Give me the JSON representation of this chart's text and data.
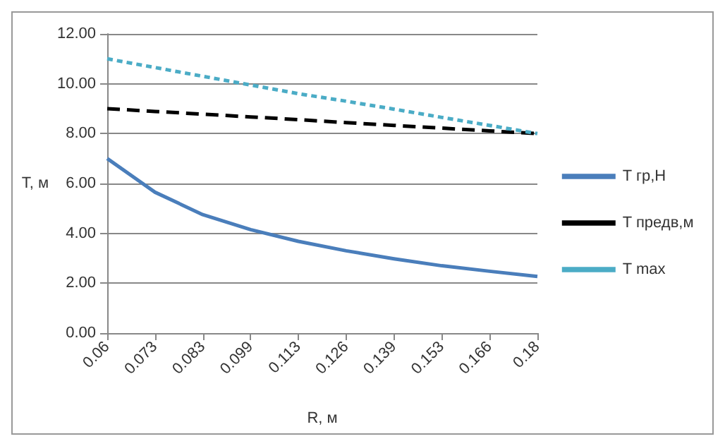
{
  "chart_data": {
    "type": "line",
    "xlabel": "R, м",
    "ylabel": "T, м",
    "categories": [
      "0.06",
      "0.073",
      "0.083",
      "0.099",
      "0.113",
      "0.126",
      "0.139",
      "0.153",
      "0.166",
      "0.18"
    ],
    "series": [
      {
        "name": "T гр,Н",
        "color": "#4a7ebb",
        "line_style": "solid",
        "values": [
          7.0,
          5.65,
          4.75,
          4.15,
          3.68,
          3.3,
          2.98,
          2.7,
          2.48,
          2.27
        ]
      },
      {
        "name": "T предв,м",
        "color": "#000000",
        "line_style": "dashed",
        "values": [
          9.0,
          8.89,
          8.78,
          8.67,
          8.56,
          8.44,
          8.33,
          8.22,
          8.11,
          8.0
        ]
      },
      {
        "name": "T max",
        "color": "#4bacc6",
        "line_style": "dotted",
        "values": [
          11.0,
          10.65,
          10.3,
          9.95,
          9.6,
          9.3,
          8.98,
          8.65,
          8.33,
          8.0
        ]
      }
    ],
    "ylim": [
      0,
      12
    ],
    "yticks": [
      {
        "value": 0,
        "label": "0.00"
      },
      {
        "value": 2,
        "label": "2.00"
      },
      {
        "value": 4,
        "label": "4.00"
      },
      {
        "value": 6,
        "label": "6.00"
      },
      {
        "value": 8,
        "label": "8.00"
      },
      {
        "value": 10,
        "label": "10.00"
      },
      {
        "value": 12,
        "label": "12.00"
      }
    ],
    "grid": "y",
    "legend": "right",
    "marker": "none"
  }
}
